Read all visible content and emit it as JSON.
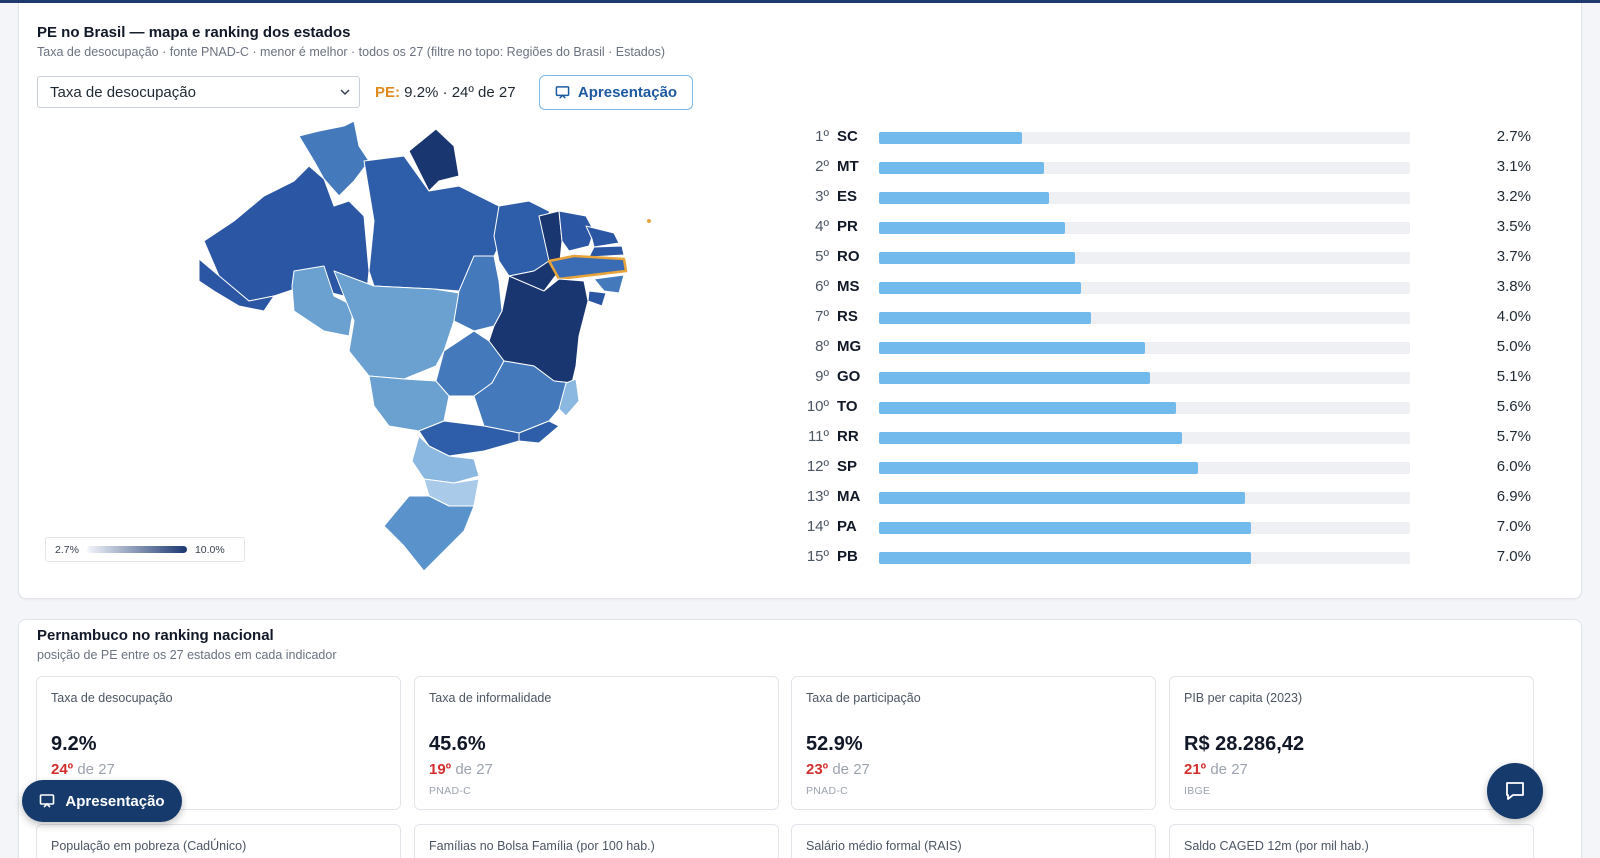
{
  "map_card": {
    "title": "PE no Brasil — mapa e ranking dos estados",
    "subtitle": "Taxa de desocupação · fonte PNAD-C · menor é melhor · todos os 27 (filtre no topo: Regiões do Brasil · Estados)",
    "indicator_select": {
      "value": "Taxa de desocupação"
    },
    "pe_summary": {
      "tag": "PE:",
      "text": " 9.2% · 24º de 27"
    },
    "presentation_button": {
      "label": "Apresentação",
      "icon": "presentation-icon"
    },
    "legend": {
      "min": "2.7%",
      "max": "10.0%"
    },
    "highlight_color": "#e8a33a"
  },
  "chart_data": {
    "type": "bar",
    "orientation": "horizontal",
    "xlim": [
      0,
      10
    ],
    "categories": [
      "SC",
      "MT",
      "ES",
      "PR",
      "RO",
      "MS",
      "RS",
      "MG",
      "GO",
      "TO",
      "RR",
      "SP",
      "MA",
      "PA",
      "PB"
    ],
    "ranks": [
      "1º",
      "2º",
      "3º",
      "4º",
      "5º",
      "6º",
      "7º",
      "8º",
      "9º",
      "10º",
      "11º",
      "12º",
      "13º",
      "14º",
      "15º"
    ],
    "values": [
      2.7,
      3.1,
      3.2,
      3.5,
      3.7,
      3.8,
      4.0,
      5.0,
      5.1,
      5.6,
      5.7,
      6.0,
      6.9,
      7.0,
      7.0
    ],
    "labels": [
      "2.7%",
      "3.1%",
      "3.2%",
      "3.5%",
      "3.7%",
      "3.8%",
      "4.0%",
      "5.0%",
      "5.1%",
      "5.6%",
      "5.7%",
      "6.0%",
      "6.9%",
      "7.0%",
      "7.0%"
    ],
    "bar_color": "#72b9ec"
  },
  "rank_card": {
    "title": "Pernambuco no ranking nacional",
    "subtitle": "posição de PE entre os 27 estados em cada indicador",
    "metrics": [
      {
        "label": "Taxa de desocupação",
        "value": "9.2%",
        "rank": "24º",
        "of": " de 27",
        "source": ""
      },
      {
        "label": "Taxa de informalidade",
        "value": "45.6%",
        "rank": "19º",
        "of": " de 27",
        "source": "PNAD-C"
      },
      {
        "label": "Taxa de participação",
        "value": "52.9%",
        "rank": "23º",
        "of": " de 27",
        "source": "PNAD-C"
      },
      {
        "label": "PIB per capita (2023)",
        "value": "R$ 28.286,42",
        "rank": "21º",
        "of": " de 27",
        "source": "IBGE"
      }
    ],
    "metrics_next_row": [
      {
        "label": "População em pobreza (CadÚnico)"
      },
      {
        "label": "Famílias no Bolsa Família (por 100 hab.)"
      },
      {
        "label": "Salário médio formal (RAIS)"
      },
      {
        "label": "Saldo CAGED 12m (por mil hab.)"
      }
    ]
  },
  "floating": {
    "present_button": {
      "label": "Apresentação"
    },
    "chat_button": {
      "icon": "chat-icon"
    }
  },
  "colors": {
    "brand": "#153a6b",
    "accent": "#1e5aa0",
    "rank_bad": "#d32f2f"
  }
}
